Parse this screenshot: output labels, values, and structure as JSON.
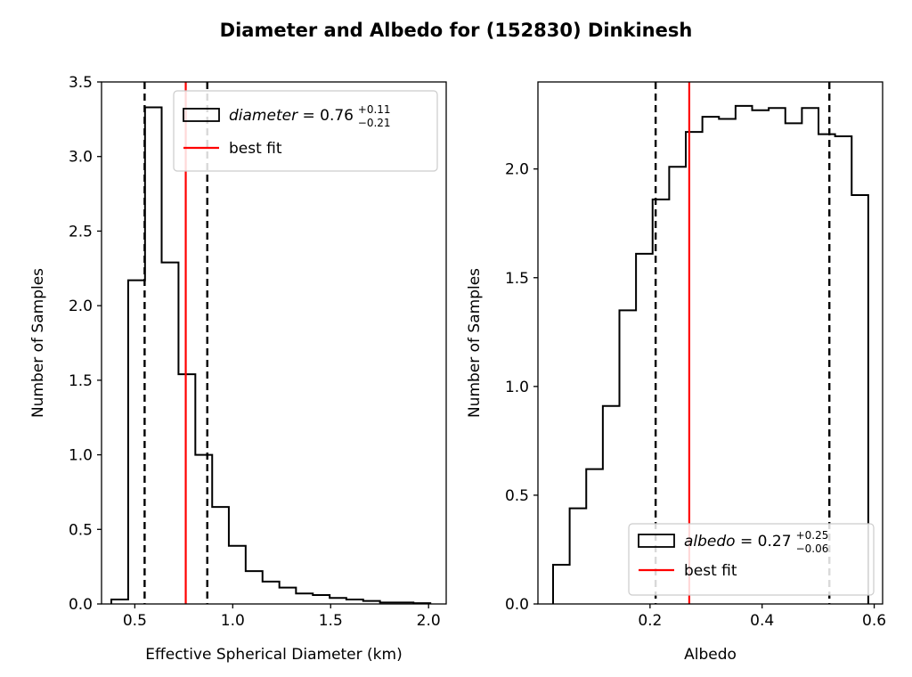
{
  "title": "Diameter and Albedo for (152830) Dinkinesh",
  "chart_data": [
    {
      "type": "histogram",
      "xlabel": "Effective Spherical Diameter (km)",
      "ylabel": "Number of Samples",
      "xlim": [
        0.33,
        2.09
      ],
      "ylim": [
        0,
        3.5
      ],
      "xticks": [
        "0.5",
        "1.0",
        "1.5",
        "2.0"
      ],
      "yticks": [
        "0.0",
        "0.5",
        "1.0",
        "1.5",
        "2.0",
        "2.5",
        "3.0",
        "3.5"
      ],
      "bin_edges": [
        0.38,
        0.466,
        0.552,
        0.637,
        0.723,
        0.809,
        0.895,
        0.98,
        1.066,
        1.152,
        1.238,
        1.323,
        1.409,
        1.495,
        1.58,
        1.666,
        1.752,
        1.838,
        1.923,
        2.009
      ],
      "counts": [
        0.03,
        2.17,
        3.33,
        2.29,
        1.54,
        1.0,
        0.65,
        0.39,
        0.22,
        0.15,
        0.11,
        0.07,
        0.06,
        0.04,
        0.03,
        0.02,
        0.01,
        0.01,
        0.005
      ],
      "best_fit": 0.76,
      "interval": [
        0.55,
        0.87
      ],
      "legend": {
        "position": "upper-right",
        "hist_var": "diameter",
        "hist_value": "0.76",
        "hist_plus": "+0.11",
        "hist_minus": "−0.21",
        "line_label": "best fit"
      },
      "colors": {
        "hist": "#000000",
        "best_fit": "#ff0000",
        "interval": "#000000"
      }
    },
    {
      "type": "histogram",
      "xlabel": "Albedo",
      "ylabel": "Number of Samples",
      "xlim": [
        0.0,
        0.615
      ],
      "ylim": [
        0,
        2.4
      ],
      "xticks": [
        "0.2",
        "0.4",
        "0.6"
      ],
      "yticks": [
        "0.0",
        "0.5",
        "1.0",
        "1.5",
        "2.0"
      ],
      "bin_edges": [
        0.027,
        0.0418,
        0.0566,
        0.0714,
        0.0862,
        0.101,
        0.1158,
        0.1306,
        0.1454,
        0.1602,
        0.175,
        0.1898,
        0.2046,
        0.2194,
        0.2342,
        0.249,
        0.2638,
        0.2786,
        0.2934,
        0.3082,
        0.323,
        0.3378,
        0.3526,
        0.3674,
        0.3822,
        0.397,
        0.4118,
        0.4266,
        0.4414,
        0.4562,
        0.471,
        0.4858,
        0.5006,
        0.5154,
        0.5302,
        0.545,
        0.5598,
        0.5746,
        0.5894
      ],
      "counts": [
        0.18,
        0.18,
        0.44,
        0.44,
        0.62,
        0.62,
        0.91,
        0.91,
        1.35,
        1.35,
        1.61,
        1.61,
        1.86,
        1.86,
        2.01,
        2.01,
        2.17,
        2.17,
        2.24,
        2.24,
        2.23,
        2.23,
        2.29,
        2.29,
        2.27,
        2.27,
        2.28,
        2.28,
        2.21,
        2.21,
        2.28,
        2.28,
        2.16,
        2.16,
        2.15,
        2.15,
        1.88,
        1.88
      ],
      "best_fit": 0.27,
      "interval": [
        0.21,
        0.52
      ],
      "legend": {
        "position": "lower-right",
        "hist_var": "albedo",
        "hist_value": "0.27",
        "hist_plus": "+0.25",
        "hist_minus": "−0.06",
        "line_label": "best fit"
      },
      "colors": {
        "hist": "#000000",
        "best_fit": "#ff0000",
        "interval": "#000000"
      }
    }
  ]
}
